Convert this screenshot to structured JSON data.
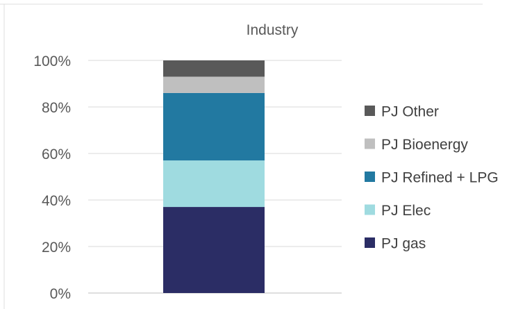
{
  "chart_data": {
    "type": "bar",
    "stacked": true,
    "percent_stacked": true,
    "title": "Industry",
    "categories": [
      "Industry"
    ],
    "yticks": [
      "0%",
      "20%",
      "40%",
      "60%",
      "80%",
      "100%"
    ],
    "ylim": [
      0,
      100
    ],
    "grid": true,
    "legend_position": "right",
    "series": [
      {
        "name": "PJ gas",
        "values": [
          37
        ],
        "color": "#2b2d65"
      },
      {
        "name": "PJ Elec",
        "values": [
          20
        ],
        "color": "#9fdbe0"
      },
      {
        "name": "PJ Refined + LPG",
        "values": [
          29
        ],
        "color": "#2279a1"
      },
      {
        "name": "PJ Bioenergy",
        "values": [
          7
        ],
        "color": "#bfbfbf"
      },
      {
        "name": "PJ Other",
        "values": [
          7
        ],
        "color": "#595959"
      }
    ]
  },
  "colors": {
    "gridline": "#d9d9d9",
    "text": "#595959"
  }
}
